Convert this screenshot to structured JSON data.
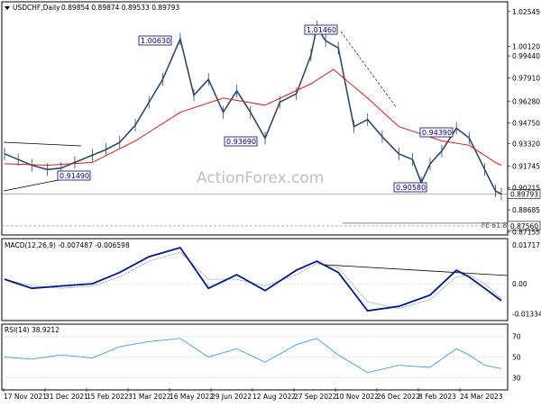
{
  "header": {
    "symbol_tf": "USDCHF,Daily",
    "ohlc": "0.89854 0.89874 0.89533 0.89793"
  },
  "watermark": "ActionForex.com",
  "indicators": {
    "macd_label": "MACD(12,26,9) -0.007487 -0.006598",
    "rsi_label": "RSI(14) 38.9212"
  },
  "current_price": "0.89793",
  "fe_label": "FE 61.8",
  "fe_price": "0.87560",
  "annotations": [
    {
      "text": "1.00630",
      "value": 1.0063,
      "date": "2022-05-16"
    },
    {
      "text": "1.01460",
      "value": 1.0146,
      "date": "2022-10-03"
    },
    {
      "text": "0.93690",
      "value": 0.9369,
      "date": "2022-08-11"
    },
    {
      "text": "0.91490",
      "value": 0.9149,
      "date": "2021-12-31"
    },
    {
      "text": "0.94390",
      "value": 0.9439,
      "date": "2023-02-23"
    },
    {
      "text": "0.90580",
      "value": 0.9058,
      "date": "2023-01-18"
    }
  ],
  "chart_data": [
    {
      "type": "line",
      "title": "USDCHF,Daily",
      "x_tick_labels": [
        "17 Nov 2021",
        "31 Dec 2021",
        "15 Feb 2022",
        "31 Mar 2022",
        "16 May 2022",
        "29 Jun 2022",
        "12 Aug 2022",
        "27 Sep 2022",
        "10 Nov 2022",
        "26 Dec 2022",
        "8 Feb 2023",
        "24 Mar 2023"
      ],
      "y_tick_labels": [
        "1.02545",
        "1.00120",
        "0.99440",
        "0.97910",
        "0.96280",
        "0.94750",
        "0.93320",
        "0.91745",
        "0.90215",
        "0.88685",
        "0.87155"
      ],
      "ylim": [
        0.8705,
        1.031
      ],
      "series": [
        {
          "name": "Price",
          "x": [
            "2021-11-17",
            "2021-12-01",
            "2021-12-15",
            "2021-12-31",
            "2022-01-14",
            "2022-01-28",
            "2022-02-15",
            "2022-03-01",
            "2022-03-15",
            "2022-03-31",
            "2022-04-14",
            "2022-04-28",
            "2022-05-16",
            "2022-05-30",
            "2022-06-14",
            "2022-06-29",
            "2022-07-13",
            "2022-07-27",
            "2022-08-11",
            "2022-08-26",
            "2022-09-12",
            "2022-09-27",
            "2022-10-03",
            "2022-10-12",
            "2022-10-25",
            "2022-11-10",
            "2022-11-24",
            "2022-12-09",
            "2022-12-26",
            "2023-01-09",
            "2023-01-18",
            "2023-01-27",
            "2023-02-08",
            "2023-02-23",
            "2023-03-08",
            "2023-03-24",
            "2023-04-04",
            "2023-04-10"
          ],
          "values": [
            0.926,
            0.922,
            0.918,
            0.915,
            0.916,
            0.92,
            0.925,
            0.929,
            0.934,
            0.946,
            0.962,
            0.978,
            1.0063,
            0.967,
            0.978,
            0.955,
            0.97,
            0.955,
            0.9369,
            0.962,
            0.968,
            0.995,
            1.0146,
            1.005,
            1.0,
            0.945,
            0.95,
            0.938,
            0.926,
            0.922,
            0.9058,
            0.919,
            0.928,
            0.9439,
            0.937,
            0.915,
            0.9,
            0.8979
          ]
        },
        {
          "name": "MA",
          "x": [
            "2021-11-17",
            "2021-12-31",
            "2022-02-15",
            "2022-03-31",
            "2022-05-16",
            "2022-06-29",
            "2022-08-11",
            "2022-09-27",
            "2022-10-20",
            "2022-11-24",
            "2022-12-26",
            "2023-02-08",
            "2023-03-08",
            "2023-04-04",
            "2023-04-10"
          ],
          "values": [
            0.919,
            0.918,
            0.92,
            0.935,
            0.955,
            0.965,
            0.96,
            0.975,
            0.985,
            0.965,
            0.945,
            0.935,
            0.932,
            0.92,
            0.918
          ]
        }
      ]
    },
    {
      "type": "line",
      "title": "MACD(12,26,9)",
      "y_tick_labels": [
        "0.01717",
        "0.00",
        "-0.01334"
      ],
      "ylim": [
        -0.0155,
        0.0192
      ],
      "series": [
        {
          "name": "MACD",
          "x": [
            "2021-11-17",
            "2021-12-15",
            "2022-01-14",
            "2022-02-15",
            "2022-03-15",
            "2022-04-14",
            "2022-05-16",
            "2022-06-14",
            "2022-07-13",
            "2022-08-11",
            "2022-09-12",
            "2022-10-03",
            "2022-10-25",
            "2022-11-24",
            "2022-12-26",
            "2023-01-27",
            "2023-02-23",
            "2023-03-08",
            "2023-03-24",
            "2023-04-10"
          ],
          "values": [
            0.002,
            -0.002,
            -0.001,
            0.0,
            0.005,
            0.012,
            0.016,
            -0.002,
            0.004,
            -0.003,
            0.006,
            0.01,
            0.005,
            -0.012,
            -0.01,
            -0.005,
            0.006,
            0.003,
            -0.002,
            -0.0075
          ]
        },
        {
          "name": "Signal",
          "x": [
            "2021-11-17",
            "2021-12-15",
            "2022-01-14",
            "2022-02-15",
            "2022-03-15",
            "2022-04-14",
            "2022-05-16",
            "2022-06-14",
            "2022-07-13",
            "2022-08-11",
            "2022-09-12",
            "2022-10-03",
            "2022-10-25",
            "2022-11-24",
            "2022-12-26",
            "2023-01-27",
            "2023-02-23",
            "2023-03-08",
            "2023-03-24",
            "2023-04-10"
          ],
          "values": [
            0.002,
            -0.001,
            -0.002,
            -0.001,
            0.003,
            0.01,
            0.014,
            0.002,
            0.002,
            -0.001,
            0.004,
            0.009,
            0.007,
            -0.008,
            -0.011,
            -0.007,
            0.003,
            0.004,
            0.0,
            -0.0066
          ]
        }
      ]
    },
    {
      "type": "line",
      "title": "RSI(14)",
      "y_tick_labels": [
        "70",
        "50",
        "30"
      ],
      "ylim": [
        20,
        80
      ],
      "series": [
        {
          "name": "RSI",
          "x": [
            "2021-11-17",
            "2021-12-15",
            "2022-01-14",
            "2022-02-15",
            "2022-03-15",
            "2022-04-14",
            "2022-05-16",
            "2022-06-14",
            "2022-07-13",
            "2022-08-11",
            "2022-09-12",
            "2022-10-03",
            "2022-10-25",
            "2022-11-24",
            "2022-12-26",
            "2023-01-27",
            "2023-02-23",
            "2023-03-08",
            "2023-03-24",
            "2023-04-10"
          ],
          "values": [
            50,
            48,
            52,
            49,
            60,
            65,
            68,
            50,
            58,
            45,
            62,
            68,
            52,
            35,
            42,
            40,
            58,
            52,
            42,
            38.9
          ]
        }
      ]
    }
  ]
}
